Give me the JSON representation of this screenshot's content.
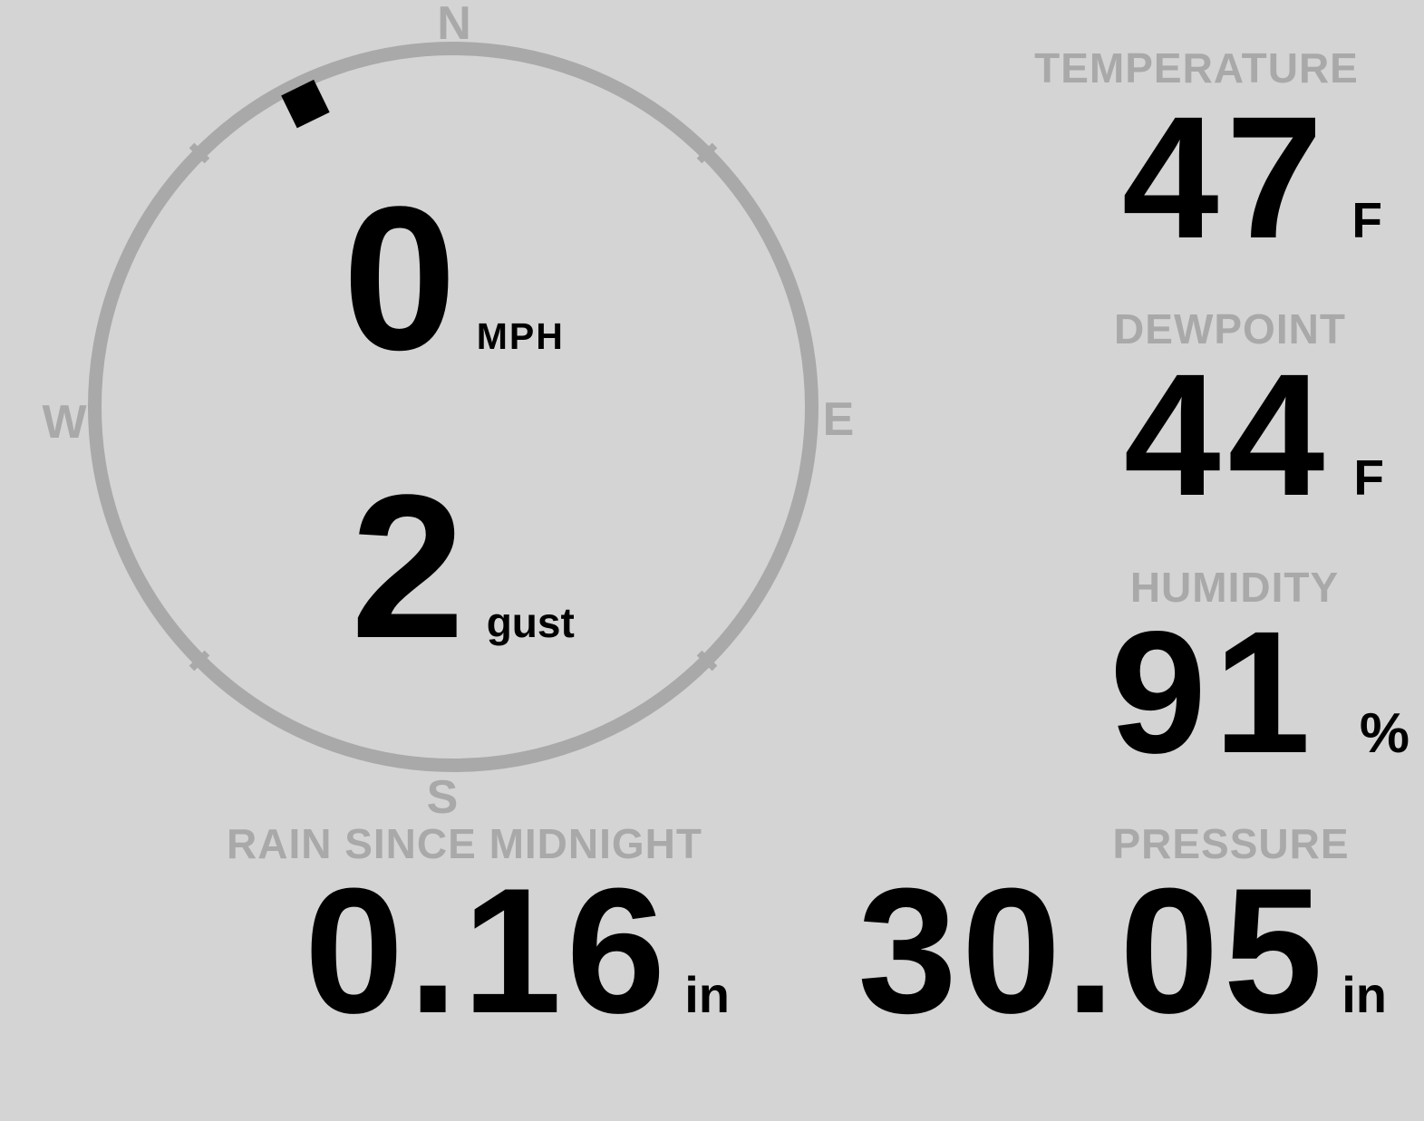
{
  "theme": {
    "background": "#d4d4d4",
    "muted_gray": "#a9a9a9",
    "value_color": "#000000"
  },
  "wind": {
    "speed": "0",
    "speed_unit": "MPH",
    "gust": "2",
    "gust_unit": "gust",
    "compass": {
      "north": "N",
      "east": "E",
      "south": "S",
      "west": "W",
      "direction_deg": 334
    }
  },
  "metrics": {
    "temperature": {
      "label": "TEMPERATURE",
      "value": "47",
      "unit": "F"
    },
    "dewpoint": {
      "label": "DEWPOINT",
      "value": "44",
      "unit": "F"
    },
    "humidity": {
      "label": "HUMIDITY",
      "value": "91",
      "unit": "%"
    },
    "rain": {
      "label": "RAIN SINCE MIDNIGHT",
      "value": "0.16",
      "unit": "in"
    },
    "pressure": {
      "label": "PRESSURE",
      "value": "30.05",
      "unit": "in"
    }
  }
}
